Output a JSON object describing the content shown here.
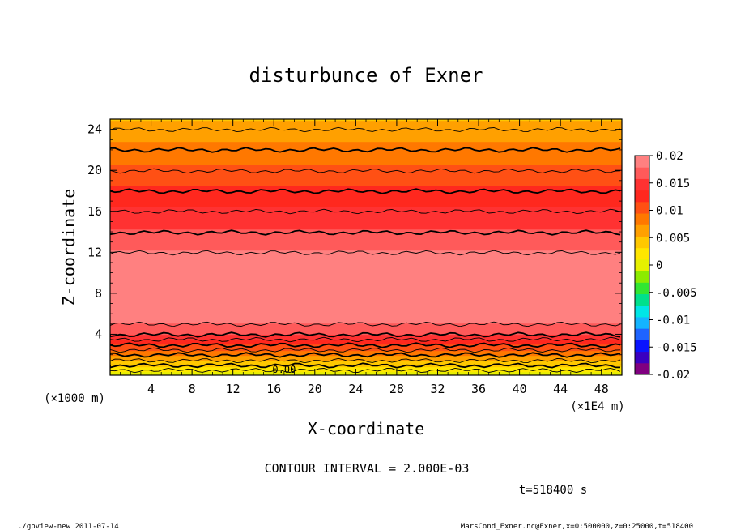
{
  "chart_data": {
    "type": "contour",
    "title": "disturbunce of Exner",
    "xlabel": "X-coordinate",
    "ylabel": "Z-coordinate",
    "x_unit_left": "(×1000 m)",
    "x_unit_right": "(×1E4 m)",
    "xlim": [
      0,
      50
    ],
    "ylim": [
      0,
      25
    ],
    "x_ticks": [
      4,
      8,
      12,
      16,
      20,
      24,
      28,
      32,
      36,
      40,
      44,
      48
    ],
    "y_ticks": [
      4,
      8,
      12,
      16,
      20,
      24
    ],
    "contour_interval_text": "CONTOUR INTERVAL = 2.000E-03",
    "time_text": "t=518400 s",
    "contour_label": "0.00",
    "colorbar": {
      "labels": [
        "0.02",
        "0.015",
        "0.01",
        "0.005",
        "0",
        "-0.005",
        "-0.01",
        "-0.015",
        "-0.02"
      ],
      "range": [
        -0.02,
        0.02
      ],
      "colors": [
        "#800080",
        "#3a00c0",
        "#0a14ff",
        "#1e64ff",
        "#14b4ff",
        "#00e6e6",
        "#00e08c",
        "#32e632",
        "#8ceb00",
        "#e6f000",
        "#ffe600",
        "#ffc800",
        "#ffa000",
        "#ff7800",
        "#ff5014",
        "#ff281e",
        "#ff3232",
        "#ff5a5a",
        "#ff8080"
      ]
    },
    "profile": {
      "z": [
        0,
        0.5,
        1,
        1.5,
        2,
        2.5,
        3,
        3.5,
        4,
        4.5,
        5,
        6,
        8,
        10,
        12,
        14,
        16,
        18,
        20,
        22,
        24,
        25
      ],
      "value": [
        0.0,
        0.002,
        0.004,
        0.006,
        0.008,
        0.01,
        0.012,
        0.014,
        0.016,
        0.017,
        0.018,
        0.019,
        0.0198,
        0.019,
        0.018,
        0.016,
        0.014,
        0.012,
        0.01,
        0.008,
        0.006,
        0.005
      ]
    }
  },
  "footer": {
    "left": "./gpview-new   2011-07-14",
    "right": "MarsCond_Exner.nc@Exner,x=0:500000,z=0:25000,t=518400"
  }
}
